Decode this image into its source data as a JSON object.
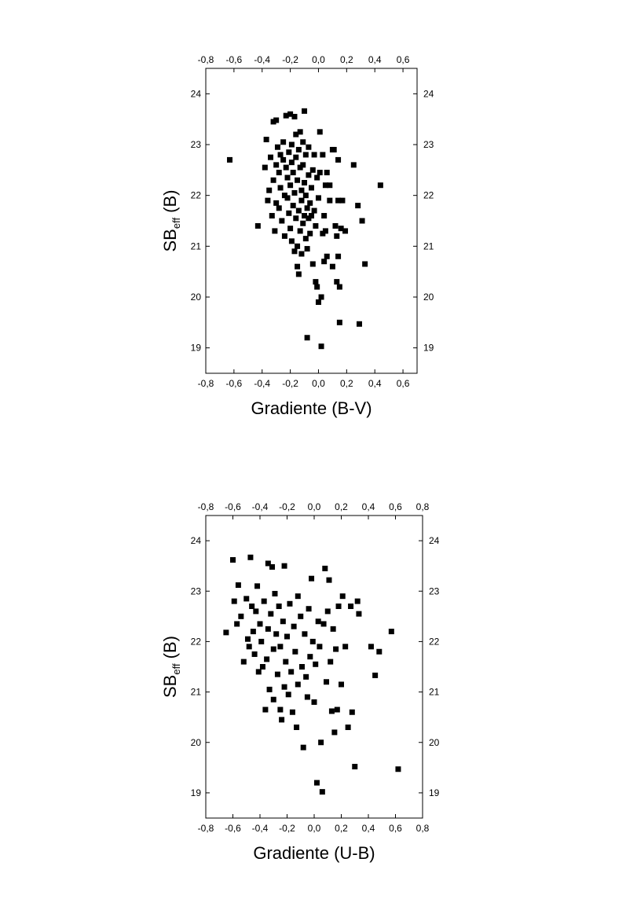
{
  "chart_data": [
    {
      "type": "scatter",
      "xlabel": "Gradiente (B-V)",
      "ylabel_main": "SB",
      "ylabel_sub": "eff",
      "ylabel_tail": " (B)",
      "xlim": [
        -0.8,
        0.7
      ],
      "ylim": [
        18.5,
        24.5
      ],
      "xticks": [
        -0.8,
        -0.6,
        -0.4,
        -0.2,
        0.0,
        0.2,
        0.4,
        0.6
      ],
      "xtick_labels": [
        "-0,8",
        "-0,6",
        "-0,4",
        "-0,2",
        "0,0",
        "0,2",
        "0,4",
        "0,6"
      ],
      "yticks": [
        19,
        20,
        21,
        22,
        23,
        24
      ],
      "ytick_labels": [
        "19",
        "20",
        "21",
        "22",
        "23",
        "24"
      ],
      "mirror_axes": true,
      "marker": "square",
      "color": "#000000",
      "points": [
        [
          -0.63,
          22.7
        ],
        [
          -0.43,
          21.4
        ],
        [
          -0.38,
          22.55
        ],
        [
          -0.37,
          23.1
        ],
        [
          -0.36,
          21.9
        ],
        [
          -0.35,
          22.1
        ],
        [
          -0.34,
          22.75
        ],
        [
          -0.33,
          21.6
        ],
        [
          -0.32,
          23.45
        ],
        [
          -0.32,
          22.3
        ],
        [
          -0.31,
          21.3
        ],
        [
          -0.3,
          23.48
        ],
        [
          -0.3,
          22.6
        ],
        [
          -0.3,
          21.85
        ],
        [
          -0.29,
          22.95
        ],
        [
          -0.28,
          22.45
        ],
        [
          -0.28,
          21.75
        ],
        [
          -0.27,
          22.8
        ],
        [
          -0.27,
          22.15
        ],
        [
          -0.26,
          21.5
        ],
        [
          -0.25,
          23.05
        ],
        [
          -0.25,
          22.7
        ],
        [
          -0.24,
          21.2
        ],
        [
          -0.24,
          22.0
        ],
        [
          -0.23,
          22.55
        ],
        [
          -0.23,
          23.57
        ],
        [
          -0.22,
          21.95
        ],
        [
          -0.22,
          22.35
        ],
        [
          -0.21,
          22.85
        ],
        [
          -0.21,
          21.65
        ],
        [
          -0.2,
          23.6
        ],
        [
          -0.2,
          22.2
        ],
        [
          -0.2,
          21.35
        ],
        [
          -0.19,
          22.65
        ],
        [
          -0.19,
          23.0
        ],
        [
          -0.19,
          21.1
        ],
        [
          -0.18,
          22.45
        ],
        [
          -0.18,
          21.8
        ],
        [
          -0.17,
          23.55
        ],
        [
          -0.17,
          22.05
        ],
        [
          -0.17,
          20.9
        ],
        [
          -0.16,
          22.75
        ],
        [
          -0.16,
          21.55
        ],
        [
          -0.16,
          23.2
        ],
        [
          -0.15,
          22.3
        ],
        [
          -0.15,
          21.0
        ],
        [
          -0.15,
          20.6
        ],
        [
          -0.14,
          22.9
        ],
        [
          -0.14,
          21.7
        ],
        [
          -0.14,
          20.45
        ],
        [
          -0.13,
          22.55
        ],
        [
          -0.13,
          21.3
        ],
        [
          -0.13,
          23.25
        ],
        [
          -0.12,
          22.1
        ],
        [
          -0.12,
          21.9
        ],
        [
          -0.12,
          20.85
        ],
        [
          -0.11,
          22.6
        ],
        [
          -0.11,
          21.45
        ],
        [
          -0.11,
          23.05
        ],
        [
          -0.1,
          22.25
        ],
        [
          -0.1,
          21.6
        ],
        [
          -0.1,
          23.66
        ],
        [
          -0.09,
          22.8
        ],
        [
          -0.09,
          21.15
        ],
        [
          -0.09,
          22.0
        ],
        [
          -0.08,
          21.75
        ],
        [
          -0.08,
          20.95
        ],
        [
          -0.08,
          19.2
        ],
        [
          -0.07,
          22.4
        ],
        [
          -0.07,
          21.55
        ],
        [
          -0.07,
          22.95
        ],
        [
          -0.06,
          21.85
        ],
        [
          -0.06,
          21.25
        ],
        [
          -0.05,
          22.15
        ],
        [
          -0.05,
          21.6
        ],
        [
          -0.04,
          20.65
        ],
        [
          -0.04,
          22.5
        ],
        [
          -0.03,
          21.7
        ],
        [
          -0.03,
          22.8
        ],
        [
          -0.02,
          21.4
        ],
        [
          -0.02,
          20.3
        ],
        [
          -0.01,
          22.35
        ],
        [
          -0.01,
          20.2
        ],
        [
          0.0,
          21.95
        ],
        [
          0.0,
          19.9
        ],
        [
          0.01,
          23.25
        ],
        [
          0.01,
          22.45
        ],
        [
          0.02,
          20.0
        ],
        [
          0.02,
          19.03
        ],
        [
          0.03,
          22.8
        ],
        [
          0.03,
          21.25
        ],
        [
          0.04,
          21.6
        ],
        [
          0.04,
          20.7
        ],
        [
          0.05,
          22.2
        ],
        [
          0.05,
          21.3
        ],
        [
          0.06,
          22.45
        ],
        [
          0.06,
          20.8
        ],
        [
          0.08,
          22.2
        ],
        [
          0.08,
          21.9
        ],
        [
          0.1,
          22.9
        ],
        [
          0.1,
          20.6
        ],
        [
          0.11,
          22.9
        ],
        [
          0.12,
          21.4
        ],
        [
          0.13,
          21.2
        ],
        [
          0.13,
          20.3
        ],
        [
          0.14,
          22.7
        ],
        [
          0.14,
          21.9
        ],
        [
          0.14,
          20.8
        ],
        [
          0.15,
          20.2
        ],
        [
          0.15,
          19.5
        ],
        [
          0.16,
          21.35
        ],
        [
          0.17,
          21.9
        ],
        [
          0.19,
          21.3
        ],
        [
          0.25,
          22.6
        ],
        [
          0.28,
          21.8
        ],
        [
          0.29,
          19.47
        ],
        [
          0.31,
          21.5
        ],
        [
          0.33,
          20.65
        ],
        [
          0.44,
          22.2
        ]
      ]
    },
    {
      "type": "scatter",
      "xlabel": "Gradiente (U-B)",
      "ylabel_main": "SB",
      "ylabel_sub": "eff",
      "ylabel_tail": " (B)",
      "xlim": [
        -0.8,
        0.8
      ],
      "ylim": [
        18.5,
        24.5
      ],
      "xticks": [
        -0.8,
        -0.6,
        -0.4,
        -0.2,
        0.0,
        0.2,
        0.4,
        0.6,
        0.8
      ],
      "xtick_labels": [
        "-0,8",
        "-0,6",
        "-0,4",
        "-0,2",
        "0,0",
        "0,2",
        "0,4",
        "0,6",
        "0,8"
      ],
      "yticks": [
        19,
        20,
        21,
        22,
        23,
        24
      ],
      "ytick_labels": [
        "19",
        "20",
        "21",
        "22",
        "23",
        "24"
      ],
      "mirror_axes": true,
      "marker": "square",
      "color": "#000000",
      "points": [
        [
          -0.65,
          22.18
        ],
        [
          -0.6,
          23.62
        ],
        [
          -0.59,
          22.8
        ],
        [
          -0.57,
          22.35
        ],
        [
          -0.56,
          23.12
        ],
        [
          -0.54,
          22.5
        ],
        [
          -0.52,
          21.6
        ],
        [
          -0.5,
          22.85
        ],
        [
          -0.49,
          22.05
        ],
        [
          -0.48,
          21.9
        ],
        [
          -0.47,
          23.67
        ],
        [
          -0.46,
          22.7
        ],
        [
          -0.45,
          22.2
        ],
        [
          -0.44,
          21.75
        ],
        [
          -0.43,
          22.6
        ],
        [
          -0.42,
          23.1
        ],
        [
          -0.41,
          21.4
        ],
        [
          -0.4,
          22.35
        ],
        [
          -0.39,
          22.0
        ],
        [
          -0.38,
          21.5
        ],
        [
          -0.37,
          22.8
        ],
        [
          -0.36,
          20.65
        ],
        [
          -0.35,
          21.65
        ],
        [
          -0.34,
          23.55
        ],
        [
          -0.34,
          22.25
        ],
        [
          -0.33,
          21.05
        ],
        [
          -0.32,
          22.55
        ],
        [
          -0.31,
          23.48
        ],
        [
          -0.3,
          21.85
        ],
        [
          -0.3,
          20.85
        ],
        [
          -0.29,
          22.95
        ],
        [
          -0.28,
          22.15
        ],
        [
          -0.27,
          21.35
        ],
        [
          -0.26,
          22.7
        ],
        [
          -0.25,
          20.65
        ],
        [
          -0.25,
          21.9
        ],
        [
          -0.24,
          20.45
        ],
        [
          -0.23,
          22.4
        ],
        [
          -0.22,
          21.1
        ],
        [
          -0.22,
          23.5
        ],
        [
          -0.21,
          21.6
        ],
        [
          -0.2,
          22.1
        ],
        [
          -0.19,
          20.95
        ],
        [
          -0.18,
          22.75
        ],
        [
          -0.17,
          21.4
        ],
        [
          -0.16,
          20.6
        ],
        [
          -0.15,
          22.3
        ],
        [
          -0.14,
          21.8
        ],
        [
          -0.13,
          20.3
        ],
        [
          -0.12,
          22.9
        ],
        [
          -0.12,
          21.15
        ],
        [
          -0.1,
          22.5
        ],
        [
          -0.09,
          21.5
        ],
        [
          -0.08,
          19.9
        ],
        [
          -0.07,
          22.15
        ],
        [
          -0.06,
          21.3
        ],
        [
          -0.05,
          20.9
        ],
        [
          -0.04,
          22.65
        ],
        [
          -0.03,
          21.7
        ],
        [
          -0.02,
          23.25
        ],
        [
          -0.01,
          22.0
        ],
        [
          0.0,
          20.8
        ],
        [
          0.01,
          21.55
        ],
        [
          0.02,
          19.2
        ],
        [
          0.03,
          22.4
        ],
        [
          0.04,
          21.9
        ],
        [
          0.05,
          20.0
        ],
        [
          0.06,
          19.02
        ],
        [
          0.07,
          22.35
        ],
        [
          0.08,
          23.45
        ],
        [
          0.09,
          21.2
        ],
        [
          0.1,
          22.6
        ],
        [
          0.11,
          23.22
        ],
        [
          0.12,
          21.6
        ],
        [
          0.13,
          20.62
        ],
        [
          0.14,
          22.25
        ],
        [
          0.15,
          20.2
        ],
        [
          0.16,
          21.85
        ],
        [
          0.17,
          20.65
        ],
        [
          0.18,
          22.7
        ],
        [
          0.2,
          21.15
        ],
        [
          0.21,
          22.9
        ],
        [
          0.23,
          21.9
        ],
        [
          0.25,
          20.3
        ],
        [
          0.27,
          22.7
        ],
        [
          0.28,
          20.6
        ],
        [
          0.3,
          19.52
        ],
        [
          0.32,
          22.8
        ],
        [
          0.33,
          22.55
        ],
        [
          0.42,
          21.9
        ],
        [
          0.45,
          21.33
        ],
        [
          0.48,
          21.8
        ],
        [
          0.57,
          22.2
        ],
        [
          0.62,
          19.47
        ]
      ]
    }
  ]
}
